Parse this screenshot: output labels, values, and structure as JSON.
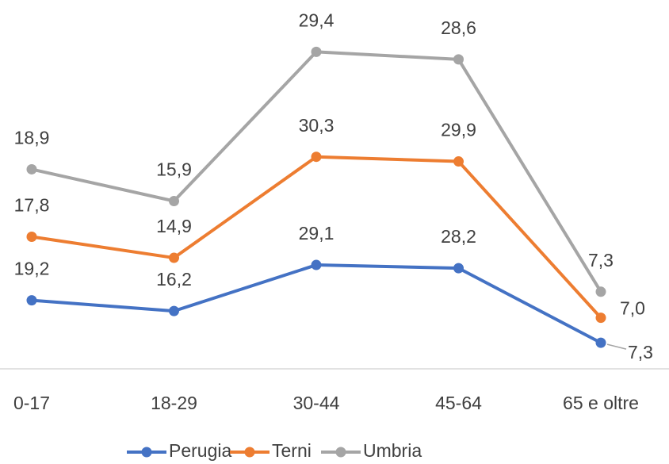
{
  "chart_data": {
    "type": "line",
    "stacked": true,
    "categories": [
      "0-17",
      "18-29",
      "30-44",
      "45-64",
      "65 e oltre"
    ],
    "series": [
      {
        "name": "Perugia",
        "color": "#4472c4",
        "values": [
          19.2,
          16.2,
          29.1,
          28.2,
          7.3
        ],
        "value_labels": [
          "19,2",
          "16,2",
          "29,1",
          "28,2",
          "7,3"
        ]
      },
      {
        "name": "Terni",
        "color": "#ed7d31",
        "values": [
          17.8,
          14.9,
          30.3,
          29.9,
          7.0
        ],
        "value_labels": [
          "17,8",
          "14,9",
          "30,3",
          "29,9",
          "7,0"
        ]
      },
      {
        "name": "Umbria",
        "color": "#a5a5a5",
        "values": [
          18.9,
          15.9,
          29.4,
          28.6,
          7.3
        ],
        "value_labels": [
          "18,9",
          "15,9",
          "29,4",
          "28,6",
          "7,3"
        ]
      }
    ],
    "ylim": [
      0,
      100
    ],
    "legend": "bottom"
  }
}
